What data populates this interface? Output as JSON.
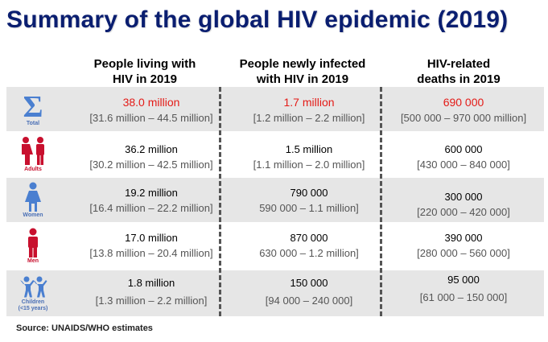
{
  "title": "Summary of the global HIV epidemic (2019)",
  "columns": [
    {
      "line1": "People living with",
      "line2": "HIV in 2019"
    },
    {
      "line1": "People newly infected",
      "line2": "with HIV in 2019"
    },
    {
      "line1": "HIV-related",
      "line2": "deaths in 2019"
    }
  ],
  "rows": [
    {
      "label": "Total",
      "living": {
        "value": "38.0 million",
        "range": "[31.6 million – 44.5 million]"
      },
      "new": {
        "value": "1.7 million",
        "range": "[1.2 million – 2.2 million]"
      },
      "deaths": {
        "value": "690 000",
        "range": "[500 000 – 970 000 million]"
      }
    },
    {
      "label": "Adults",
      "living": {
        "value": "36.2 million",
        "range": "[30.2 million – 42.5 million]"
      },
      "new": {
        "value": "1.5 million",
        "range": "[1.1 million – 2.0 million]"
      },
      "deaths": {
        "value": "600 000",
        "range": "[430 000 – 840 000]"
      }
    },
    {
      "label": "Women",
      "living": {
        "value": "19.2 million",
        "range": "[16.4 million – 22.2 million]"
      },
      "new": {
        "value": "790 000",
        "range": "590 000 – 1.1 million]"
      },
      "deaths": {
        "value": "300 000",
        "range": "[220 000 – 420 000]"
      }
    },
    {
      "label": "Men",
      "living": {
        "value": "17.0 million",
        "range": "[13.8 million – 20.4 million]"
      },
      "new": {
        "value": "870 000",
        "range": "630 000 – 1.2 million]"
      },
      "deaths": {
        "value": "390 000",
        "range": "[280 000 – 560 000]"
      }
    },
    {
      "label": "Children",
      "sublabel": "(<15 years)",
      "living": {
        "value": "1.8 million",
        "range": "[1.3 million – 2.2 million]"
      },
      "new": {
        "value": "150 000",
        "range": "[94 000 – 240 000]"
      },
      "deaths": {
        "value": "95 000",
        "range": "[61 000 – 150 000]"
      }
    }
  ],
  "source": "Source: UNAIDS/WHO estimates",
  "colors": {
    "title": "#0a1e70",
    "highlight": "#e41b17",
    "icon_blue": "#4a7fd0",
    "icon_red": "#c8102e",
    "row_shade": "#e6e6e6"
  }
}
